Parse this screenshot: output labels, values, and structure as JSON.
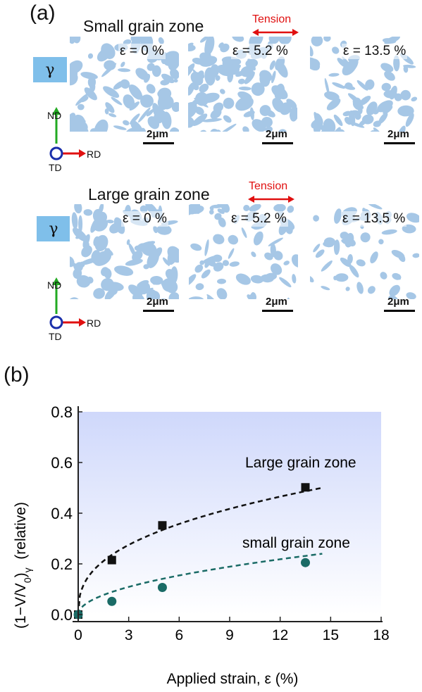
{
  "panel_a": {
    "label": "(a)",
    "tension_label": "Tension",
    "gamma_label": "γ",
    "scale_label": "2μm",
    "axes": {
      "nd": "ND",
      "rd": "RD",
      "td": "TD"
    },
    "rows": [
      {
        "title": "Small grain zone",
        "strains": [
          "ε = 0 %",
          "ε = 5.2 %",
          "ε = 13.5 %"
        ],
        "phase_fraction": [
          0.55,
          0.55,
          0.38
        ]
      },
      {
        "title": "Large grain zone",
        "strains": [
          "ε = 0 %",
          "ε = 5.2 %",
          "ε = 13.5 %"
        ],
        "phase_fraction": [
          0.5,
          0.33,
          0.22
        ]
      }
    ],
    "colors": {
      "phase": "#a6c7e6",
      "gamma_box": "#7fbfea",
      "tension_arrow": "#e01010",
      "nd_arrow": "#22aa22",
      "rd_arrow": "#e01010",
      "td_circle": "#1a2faa"
    }
  },
  "panel_b": {
    "label": "(b)"
  },
  "chart_data": {
    "type": "scatter",
    "xlabel": "Applied strain, ε (%)",
    "ylabel_main": "(1−V/V",
    "ylabel_sub0": "0",
    "ylabel_close": ")",
    "ylabel_subgamma": "γ",
    "ylabel_rest": "  (relative)",
    "xlim": [
      0,
      18
    ],
    "ylim": [
      0,
      0.8
    ],
    "xticks": [
      0,
      3,
      6,
      9,
      12,
      15,
      18
    ],
    "xtick_labels": [
      "0",
      "3",
      "6",
      "9",
      "12",
      "15",
      "18"
    ],
    "yticks": [
      0.0,
      0.2,
      0.4,
      0.6,
      0.8
    ],
    "ytick_labels": [
      "0.0",
      "0.2",
      "0.4",
      "0.6",
      "0.8"
    ],
    "series": [
      {
        "name": "Large grain zone",
        "marker": "square",
        "color": "#111111",
        "x": [
          0,
          2,
          5,
          13.5
        ],
        "y": [
          0.0,
          0.215,
          0.352,
          0.502
        ],
        "fit": {
          "a": 0.181,
          "b": 0.38,
          "x_end": 14.5
        }
      },
      {
        "name": "small grain zone",
        "marker": "circle",
        "color": "#1a6b66",
        "x": [
          0,
          2,
          5,
          13.5
        ],
        "y": [
          0.0,
          0.052,
          0.107,
          0.205
        ],
        "fit": {
          "a": 0.063,
          "b": 0.5,
          "x_end": 14.5
        }
      }
    ],
    "colors": {
      "gradient_top": "#cfd8fb",
      "gradient_bottom": "#ffffff"
    }
  }
}
